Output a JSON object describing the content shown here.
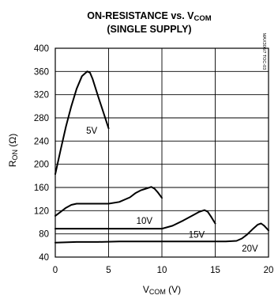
{
  "chart_data": {
    "type": "line",
    "title": {
      "main": "ON-RESISTANCE vs. V",
      "main_sub": "COM",
      "line2": "(SINGLE SUPPLY)"
    },
    "xlabel": {
      "main": "V",
      "sub": "COM",
      "unit": " (V)"
    },
    "ylabel": {
      "main": "R",
      "sub": "ON",
      "unit": " (Ω)"
    },
    "xlim": [
      0,
      20
    ],
    "ylim": [
      40,
      400
    ],
    "xticks": [
      0,
      5,
      10,
      15,
      20
    ],
    "yticks": [
      40,
      80,
      120,
      160,
      200,
      240,
      280,
      320,
      360,
      400
    ],
    "grid": true,
    "side_code": "MAX306/7 TOC-03",
    "series": [
      {
        "name": "5V",
        "x": [
          0,
          0.5,
          1,
          1.5,
          2,
          2.5,
          3,
          3.25,
          3.5,
          4,
          4.5,
          5
        ],
        "y": [
          183,
          225,
          265,
          300,
          330,
          352,
          360,
          358,
          347,
          318,
          290,
          262
        ]
      },
      {
        "name": "10V",
        "x": [
          0,
          0.5,
          1,
          1.5,
          2,
          3,
          4,
          5,
          6,
          7,
          7.5,
          8,
          8.5,
          9,
          9.3,
          9.6,
          10
        ],
        "y": [
          111,
          118,
          125,
          130,
          132,
          132,
          132,
          132,
          135,
          143,
          150,
          155,
          158,
          161,
          158,
          152,
          142
        ]
      },
      {
        "name": "15V",
        "x": [
          0,
          2,
          4,
          6,
          8,
          10,
          11,
          12,
          13,
          13.5,
          14,
          14.3,
          14.6,
          15
        ],
        "y": [
          89,
          89,
          89,
          89,
          89,
          89,
          94,
          103,
          113,
          118,
          121,
          118,
          110,
          98
        ]
      },
      {
        "name": "20V",
        "x": [
          0,
          2,
          4,
          6,
          8,
          10,
          12,
          14,
          16,
          17,
          17.5,
          18,
          18.5,
          19,
          19.3,
          19.6,
          20
        ],
        "y": [
          65,
          66,
          66,
          67,
          67,
          67,
          67,
          67,
          67,
          68,
          72,
          79,
          88,
          96,
          98,
          94,
          86
        ]
      }
    ],
    "labels": [
      {
        "text": "5V",
        "x": 2.9,
        "y": 258
      },
      {
        "text": "10V",
        "x": 7.6,
        "y": 103
      },
      {
        "text": "15V",
        "x": 12.5,
        "y": 79
      },
      {
        "text": "20V",
        "x": 17.5,
        "y": 55
      }
    ]
  }
}
